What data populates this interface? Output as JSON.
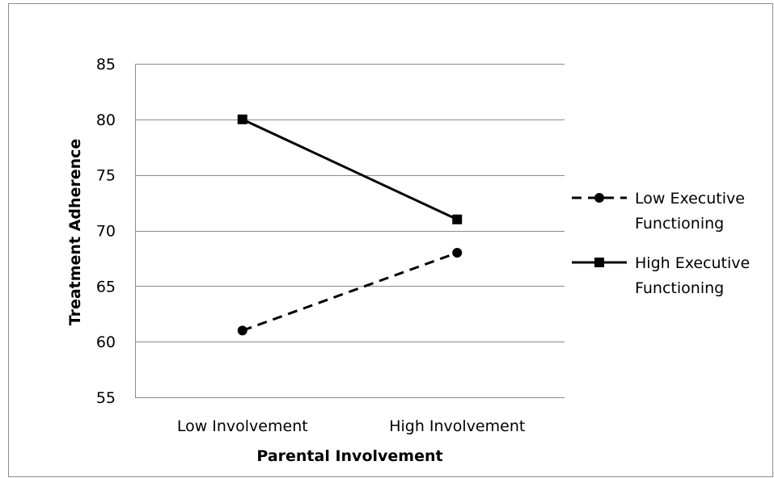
{
  "chart_data": {
    "type": "line",
    "title": "",
    "xlabel": "Parental Involvement",
    "ylabel": "Treatment Adherence",
    "categories": [
      "Low Involvement",
      "High Involvement"
    ],
    "ylim": [
      55,
      85
    ],
    "yticks": [
      55,
      60,
      65,
      70,
      75,
      80,
      85
    ],
    "grid": true,
    "legend_position": "right",
    "series": [
      {
        "name": "Low Executive Functioning",
        "legend_lines": [
          "Low Executive",
          "Functioning"
        ],
        "values": [
          61,
          68
        ],
        "line_style": "dashed",
        "marker": "circle",
        "color": "#000000"
      },
      {
        "name": "High Executive Functioning",
        "legend_lines": [
          "High Executive",
          "Functioning"
        ],
        "values": [
          80,
          71
        ],
        "line_style": "solid",
        "marker": "square",
        "color": "#000000"
      }
    ]
  }
}
